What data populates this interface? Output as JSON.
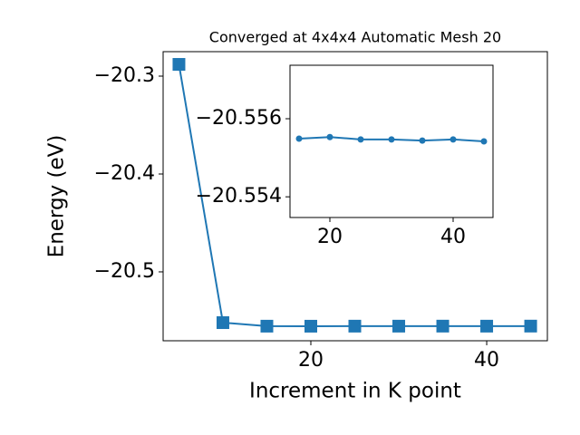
{
  "chart_data": [
    {
      "type": "line",
      "title": "Converged at 4x4x4 Automatic Mesh 20",
      "x_label": "Increment in K point",
      "y_label": "Energy (eV)",
      "x": [
        5,
        10,
        15,
        20,
        25,
        30,
        35,
        40,
        45
      ],
      "series": [
        {
          "color": "#1f77b4",
          "marker": "square",
          "values": [
            -20.288,
            -20.5519,
            -20.55549,
            -20.55553,
            -20.55547,
            -20.55547,
            -20.55544,
            -20.55547,
            -20.55542
          ]
        }
      ],
      "xlim": [
        3.2,
        46.9
      ],
      "xticks": [
        20,
        40
      ],
      "ylim": [
        -20.5704,
        -20.275
      ],
      "yticks": [
        {
          "value": -20.3,
          "label": "−20.3"
        },
        {
          "value": -20.4,
          "label": "−20.4"
        },
        {
          "value": -20.5,
          "label": "−20.5"
        }
      ]
    },
    {
      "type": "line",
      "x": [
        15,
        20,
        25,
        30,
        35,
        40,
        45
      ],
      "series": [
        {
          "color": "#1f77b4",
          "marker": "circle",
          "values": [
            -20.55549,
            -20.55553,
            -20.55547,
            -20.55547,
            -20.55544,
            -20.55547,
            -20.55542
          ]
        }
      ],
      "xlim": [
        13.53,
        46.47
      ],
      "xticks": [
        20,
        40
      ],
      "ylim": [
        -20.55347,
        -20.55737
      ],
      "yticks": [
        {
          "value": -20.556,
          "label": "−20.556"
        },
        {
          "value": -20.554,
          "label": "−20.554"
        }
      ]
    }
  ]
}
